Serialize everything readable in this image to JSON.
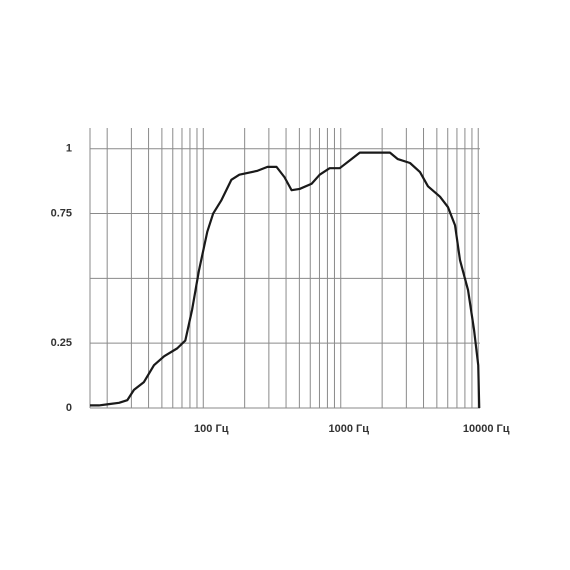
{
  "chart_data": {
    "type": "line",
    "x": [
      15,
      17.4,
      20.6,
      24.4,
      28,
      31.3,
      37,
      43.8,
      52,
      64.6,
      74,
      83,
      93,
      107,
      118,
      135,
      160,
      183,
      248,
      293,
      341,
      390,
      439,
      502,
      614,
      703,
      830,
      983,
      1164,
      1375,
      1770,
      2280,
      2600,
      3190,
      3770,
      4310,
      5270,
      6020,
      6780,
      7370,
      8430,
      9330,
      10000,
      10170
    ],
    "series": [
      {
        "color": "#1a1a1a",
        "values": [
          0.01,
          0.01,
          0.015,
          0.02,
          0.03,
          0.07,
          0.1,
          0.165,
          0.2,
          0.23,
          0.26,
          0.38,
          0.53,
          0.68,
          0.75,
          0.8,
          0.88,
          0.9,
          0.915,
          0.93,
          0.93,
          0.89,
          0.84,
          0.845,
          0.865,
          0.9,
          0.925,
          0.925,
          0.955,
          0.985,
          0.985,
          0.985,
          0.96,
          0.945,
          0.91,
          0.855,
          0.815,
          0.775,
          0.705,
          0.57,
          0.455,
          0.3,
          0.165,
          0
        ]
      }
    ],
    "xscale": "log",
    "xlim": [
      15,
      10300
    ],
    "ylim": [
      0,
      1.08
    ],
    "xticks": [
      {
        "value": 100,
        "label": "100 Гц"
      },
      {
        "value": 1000,
        "label": "1000 Гц"
      },
      {
        "value": 10000,
        "label": "10000 Гц"
      }
    ],
    "xgrid": [
      20,
      30,
      40,
      50,
      60,
      70,
      80,
      90,
      100,
      200,
      300,
      400,
      500,
      600,
      700,
      800,
      900,
      1000,
      2000,
      3000,
      4000,
      5000,
      6000,
      7000,
      8000,
      9000,
      10000
    ],
    "yticks": [
      0,
      0.25,
      0.75,
      1
    ],
    "ygrid": [
      0,
      0.25,
      0.5,
      0.75,
      1
    ],
    "grid": true
  }
}
